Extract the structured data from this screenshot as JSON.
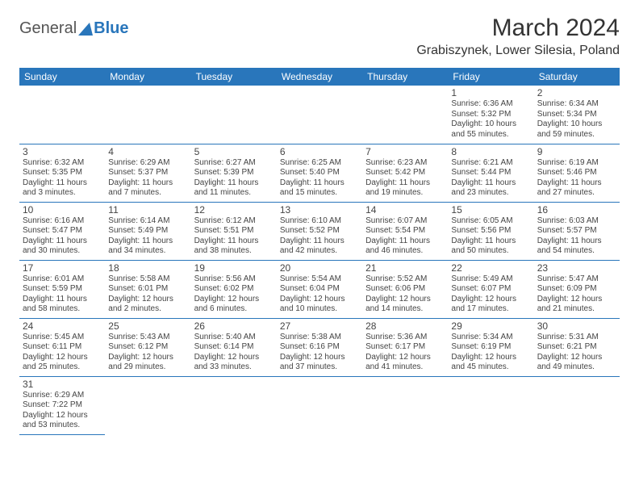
{
  "logo": {
    "text1": "General",
    "text2": "Blue"
  },
  "title": "March 2024",
  "location": "Grabiszynek, Lower Silesia, Poland",
  "colors": {
    "header_bg": "#2976bb",
    "header_fg": "#ffffff",
    "border": "#2976bb",
    "text": "#444444"
  },
  "day_headers": [
    "Sunday",
    "Monday",
    "Tuesday",
    "Wednesday",
    "Thursday",
    "Friday",
    "Saturday"
  ],
  "weeks": [
    [
      null,
      null,
      null,
      null,
      null,
      {
        "n": "1",
        "sr": "Sunrise: 6:36 AM",
        "ss": "Sunset: 5:32 PM",
        "d1": "Daylight: 10 hours",
        "d2": "and 55 minutes."
      },
      {
        "n": "2",
        "sr": "Sunrise: 6:34 AM",
        "ss": "Sunset: 5:34 PM",
        "d1": "Daylight: 10 hours",
        "d2": "and 59 minutes."
      }
    ],
    [
      {
        "n": "3",
        "sr": "Sunrise: 6:32 AM",
        "ss": "Sunset: 5:35 PM",
        "d1": "Daylight: 11 hours",
        "d2": "and 3 minutes."
      },
      {
        "n": "4",
        "sr": "Sunrise: 6:29 AM",
        "ss": "Sunset: 5:37 PM",
        "d1": "Daylight: 11 hours",
        "d2": "and 7 minutes."
      },
      {
        "n": "5",
        "sr": "Sunrise: 6:27 AM",
        "ss": "Sunset: 5:39 PM",
        "d1": "Daylight: 11 hours",
        "d2": "and 11 minutes."
      },
      {
        "n": "6",
        "sr": "Sunrise: 6:25 AM",
        "ss": "Sunset: 5:40 PM",
        "d1": "Daylight: 11 hours",
        "d2": "and 15 minutes."
      },
      {
        "n": "7",
        "sr": "Sunrise: 6:23 AM",
        "ss": "Sunset: 5:42 PM",
        "d1": "Daylight: 11 hours",
        "d2": "and 19 minutes."
      },
      {
        "n": "8",
        "sr": "Sunrise: 6:21 AM",
        "ss": "Sunset: 5:44 PM",
        "d1": "Daylight: 11 hours",
        "d2": "and 23 minutes."
      },
      {
        "n": "9",
        "sr": "Sunrise: 6:19 AM",
        "ss": "Sunset: 5:46 PM",
        "d1": "Daylight: 11 hours",
        "d2": "and 27 minutes."
      }
    ],
    [
      {
        "n": "10",
        "sr": "Sunrise: 6:16 AM",
        "ss": "Sunset: 5:47 PM",
        "d1": "Daylight: 11 hours",
        "d2": "and 30 minutes."
      },
      {
        "n": "11",
        "sr": "Sunrise: 6:14 AM",
        "ss": "Sunset: 5:49 PM",
        "d1": "Daylight: 11 hours",
        "d2": "and 34 minutes."
      },
      {
        "n": "12",
        "sr": "Sunrise: 6:12 AM",
        "ss": "Sunset: 5:51 PM",
        "d1": "Daylight: 11 hours",
        "d2": "and 38 minutes."
      },
      {
        "n": "13",
        "sr": "Sunrise: 6:10 AM",
        "ss": "Sunset: 5:52 PM",
        "d1": "Daylight: 11 hours",
        "d2": "and 42 minutes."
      },
      {
        "n": "14",
        "sr": "Sunrise: 6:07 AM",
        "ss": "Sunset: 5:54 PM",
        "d1": "Daylight: 11 hours",
        "d2": "and 46 minutes."
      },
      {
        "n": "15",
        "sr": "Sunrise: 6:05 AM",
        "ss": "Sunset: 5:56 PM",
        "d1": "Daylight: 11 hours",
        "d2": "and 50 minutes."
      },
      {
        "n": "16",
        "sr": "Sunrise: 6:03 AM",
        "ss": "Sunset: 5:57 PM",
        "d1": "Daylight: 11 hours",
        "d2": "and 54 minutes."
      }
    ],
    [
      {
        "n": "17",
        "sr": "Sunrise: 6:01 AM",
        "ss": "Sunset: 5:59 PM",
        "d1": "Daylight: 11 hours",
        "d2": "and 58 minutes."
      },
      {
        "n": "18",
        "sr": "Sunrise: 5:58 AM",
        "ss": "Sunset: 6:01 PM",
        "d1": "Daylight: 12 hours",
        "d2": "and 2 minutes."
      },
      {
        "n": "19",
        "sr": "Sunrise: 5:56 AM",
        "ss": "Sunset: 6:02 PM",
        "d1": "Daylight: 12 hours",
        "d2": "and 6 minutes."
      },
      {
        "n": "20",
        "sr": "Sunrise: 5:54 AM",
        "ss": "Sunset: 6:04 PM",
        "d1": "Daylight: 12 hours",
        "d2": "and 10 minutes."
      },
      {
        "n": "21",
        "sr": "Sunrise: 5:52 AM",
        "ss": "Sunset: 6:06 PM",
        "d1": "Daylight: 12 hours",
        "d2": "and 14 minutes."
      },
      {
        "n": "22",
        "sr": "Sunrise: 5:49 AM",
        "ss": "Sunset: 6:07 PM",
        "d1": "Daylight: 12 hours",
        "d2": "and 17 minutes."
      },
      {
        "n": "23",
        "sr": "Sunrise: 5:47 AM",
        "ss": "Sunset: 6:09 PM",
        "d1": "Daylight: 12 hours",
        "d2": "and 21 minutes."
      }
    ],
    [
      {
        "n": "24",
        "sr": "Sunrise: 5:45 AM",
        "ss": "Sunset: 6:11 PM",
        "d1": "Daylight: 12 hours",
        "d2": "and 25 minutes."
      },
      {
        "n": "25",
        "sr": "Sunrise: 5:43 AM",
        "ss": "Sunset: 6:12 PM",
        "d1": "Daylight: 12 hours",
        "d2": "and 29 minutes."
      },
      {
        "n": "26",
        "sr": "Sunrise: 5:40 AM",
        "ss": "Sunset: 6:14 PM",
        "d1": "Daylight: 12 hours",
        "d2": "and 33 minutes."
      },
      {
        "n": "27",
        "sr": "Sunrise: 5:38 AM",
        "ss": "Sunset: 6:16 PM",
        "d1": "Daylight: 12 hours",
        "d2": "and 37 minutes."
      },
      {
        "n": "28",
        "sr": "Sunrise: 5:36 AM",
        "ss": "Sunset: 6:17 PM",
        "d1": "Daylight: 12 hours",
        "d2": "and 41 minutes."
      },
      {
        "n": "29",
        "sr": "Sunrise: 5:34 AM",
        "ss": "Sunset: 6:19 PM",
        "d1": "Daylight: 12 hours",
        "d2": "and 45 minutes."
      },
      {
        "n": "30",
        "sr": "Sunrise: 5:31 AM",
        "ss": "Sunset: 6:21 PM",
        "d1": "Daylight: 12 hours",
        "d2": "and 49 minutes."
      }
    ],
    [
      {
        "n": "31",
        "sr": "Sunrise: 6:29 AM",
        "ss": "Sunset: 7:22 PM",
        "d1": "Daylight: 12 hours",
        "d2": "and 53 minutes."
      },
      null,
      null,
      null,
      null,
      null,
      null
    ]
  ]
}
